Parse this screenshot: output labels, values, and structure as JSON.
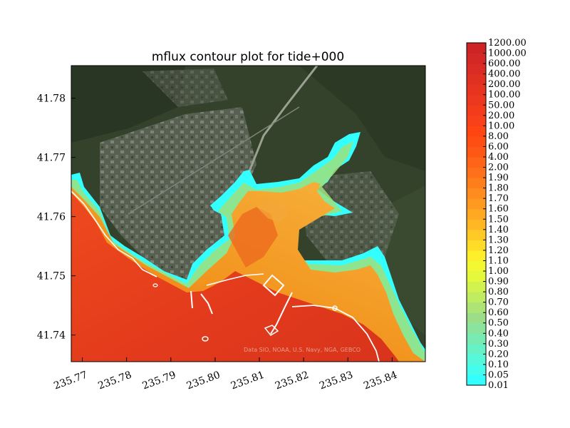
{
  "chart_data": {
    "type": "heatmap",
    "title": "mflux contour plot for tide+000",
    "xlabel": "",
    "ylabel": "",
    "xlim": [
      235.7675,
      235.8475
    ],
    "ylim": [
      41.7355,
      41.7855
    ],
    "x_ticks": [
      "235.77",
      "235.78",
      "235.79",
      "235.80",
      "235.81",
      "235.82",
      "235.83",
      "235.84"
    ],
    "y_ticks": [
      "41.74",
      "41.75",
      "41.76",
      "41.77",
      "41.78"
    ],
    "basemap_attribution": "Data SIO, NOAA, U.S. Navy, NGA, GEBCO",
    "colorbar": {
      "levels": [
        "0.01",
        "0.05",
        "0.10",
        "0.20",
        "0.30",
        "0.40",
        "0.50",
        "0.60",
        "0.70",
        "0.80",
        "0.90",
        "1.00",
        "1.10",
        "1.20",
        "1.30",
        "1.40",
        "1.50",
        "1.60",
        "1.70",
        "1.80",
        "1.90",
        "2.00",
        "4.00",
        "6.00",
        "8.00",
        "10.00",
        "20.00",
        "50.00",
        "100.00",
        "200.00",
        "400.00",
        "600.00",
        "1000.00",
        "1200.00"
      ],
      "colors": [
        "#33ffff",
        "#45fdec",
        "#55f8da",
        "#66f2c6",
        "#78ebb2",
        "#8ae49e",
        "#9cdd8a",
        "#aee476",
        "#c0ec62",
        "#d2f24e",
        "#e4f83c",
        "#f2f832",
        "#ffee2a",
        "#ffdc28",
        "#ffca26",
        "#ffb824",
        "#ffa822",
        "#ff9a20",
        "#ff8c1e",
        "#ff7e1c",
        "#ff701a",
        "#ff6418",
        "#ff5816",
        "#ff4e14",
        "#ff4612",
        "#f8401a",
        "#f23c1c",
        "#ec381e",
        "#e63420",
        "#e03022",
        "#da2c24",
        "#d42826",
        "#ce2428"
      ]
    }
  },
  "colors": {
    "land_dark": "#2f3a27",
    "land_mid": "#4a5a3c",
    "town": "#7c8275",
    "ocean_flux": "#e8401e",
    "estuary_flux": "#f28a20",
    "shallow_flux": "#33ffff"
  }
}
